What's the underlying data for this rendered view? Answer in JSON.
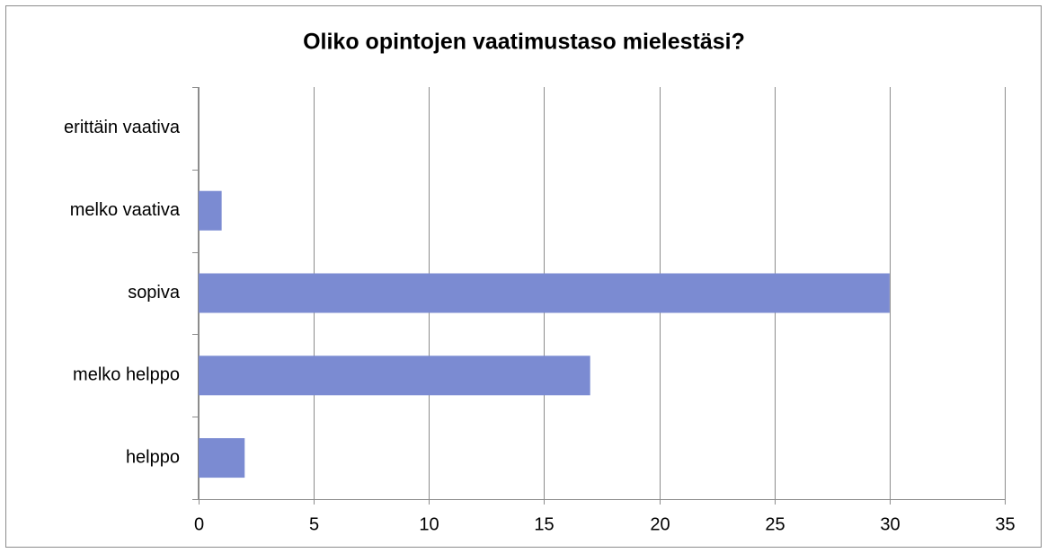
{
  "chart_data": {
    "type": "bar",
    "orientation": "horizontal",
    "title": "Oliko opintojen vaatimustaso mielestäsi?",
    "categories": [
      "erittäin vaativa",
      "melko vaativa",
      "sopiva",
      "melko helppo",
      "helppo"
    ],
    "values": [
      0,
      1,
      30,
      17,
      2
    ],
    "color": "#7b8bd2",
    "xlim": [
      0,
      35
    ],
    "xticks": [
      0,
      5,
      10,
      15,
      20,
      25,
      30,
      35
    ],
    "grid": true
  }
}
